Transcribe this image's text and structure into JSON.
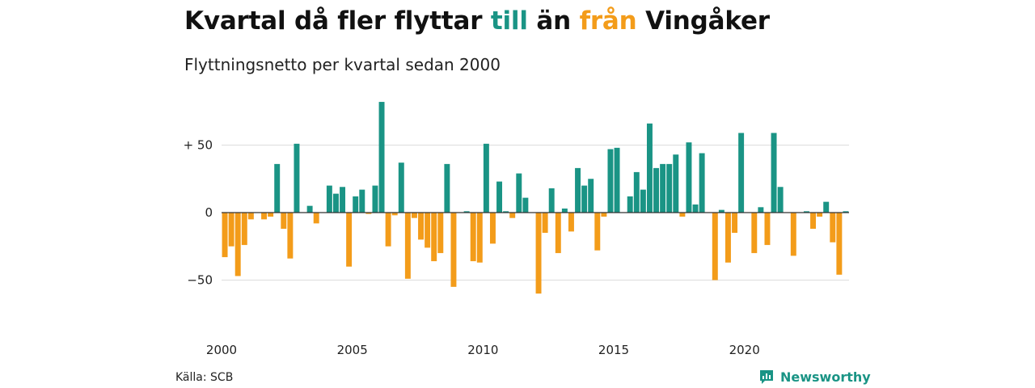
{
  "header": {
    "title_before": "Kvartal då fler flyttar ",
    "title_pos": "till",
    "title_mid": " än ",
    "title_neg": "från",
    "title_after": " Vingåker",
    "subtitle": "Flyttningsnetto per kvartal sedan 2000"
  },
  "footer": {
    "source": "Källa: SCB",
    "brand": "Newsworthy"
  },
  "colors": {
    "positive": "#1a9485",
    "negative": "#f39c1a",
    "grid": "#dddddd",
    "zero_line": "#333333"
  },
  "chart_data": {
    "type": "bar",
    "x_start_year": 2000,
    "x_unit": "quarter",
    "ylim": [
      -70,
      90
    ],
    "yticks": [
      {
        "value": 50,
        "label": "+ 50"
      },
      {
        "value": 0,
        "label": "0"
      },
      {
        "value": -50,
        "label": "−50"
      }
    ],
    "xticks": [
      "2000",
      "2005",
      "2010",
      "2015",
      "2020"
    ],
    "grid": true,
    "values": [
      -33,
      -25,
      -47,
      -24,
      -5,
      0,
      -5,
      -3,
      36,
      -12,
      -34,
      51,
      0,
      5,
      -8,
      0,
      20,
      14,
      19,
      -40,
      12,
      17,
      -1,
      20,
      82,
      -25,
      -2,
      37,
      -49,
      -4,
      -20,
      -26,
      -36,
      -30,
      36,
      -55,
      0,
      1,
      -36,
      -37,
      51,
      -23,
      23,
      1,
      -4,
      29,
      11,
      0,
      -60,
      -15,
      18,
      -30,
      3,
      -14,
      33,
      20,
      25,
      -28,
      -3,
      47,
      48,
      0,
      12,
      30,
      17,
      66,
      33,
      36,
      36,
      43,
      -3,
      52,
      6,
      44,
      0,
      -50,
      2,
      -37,
      -15,
      59,
      0,
      -30,
      4,
      -24,
      59,
      19,
      0,
      -32,
      0,
      1,
      -12,
      -3,
      8,
      -22,
      -46,
      1
    ]
  }
}
